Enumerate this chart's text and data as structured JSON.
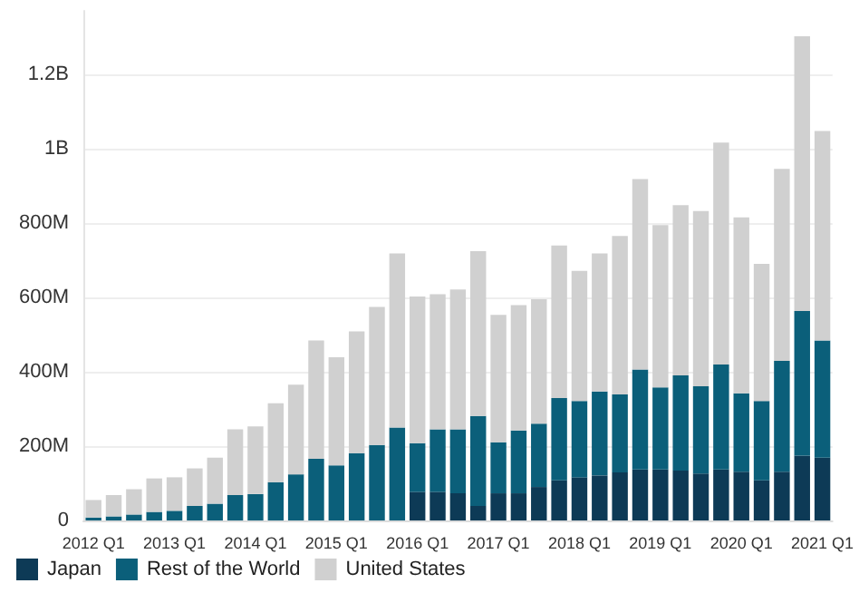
{
  "chart_data": {
    "type": "bar",
    "stacked": true,
    "categories": [
      "2012 Q1",
      null,
      null,
      null,
      "2013 Q1",
      null,
      null,
      null,
      "2014 Q1",
      null,
      null,
      null,
      "2015 Q1",
      null,
      null,
      null,
      "2016 Q1",
      null,
      null,
      null,
      "2017 Q1",
      null,
      null,
      null,
      "2018 Q1",
      null,
      null,
      null,
      "2019 Q1",
      null,
      null,
      null,
      "2020 Q1",
      null,
      null,
      null,
      "2021 Q1"
    ],
    "series": [
      {
        "name": "Japan",
        "color": "#0d3a56",
        "values": [
          0,
          0,
          0,
          0,
          0,
          0,
          0,
          0,
          0,
          0,
          0,
          0,
          0,
          0,
          0,
          0,
          77000000,
          77000000,
          73000000,
          39000000,
          73000000,
          73000000,
          90000000,
          108000000,
          116000000,
          121000000,
          129000000,
          137000000,
          137000000,
          134000000,
          126000000,
          137000000,
          131000000,
          108000000,
          131000000,
          174000000,
          169000000
        ]
      },
      {
        "name": "Rest of the World",
        "color": "#0b5f7a",
        "values": [
          8000000,
          11000000,
          16000000,
          23000000,
          26000000,
          39000000,
          45000000,
          68000000,
          71000000,
          103000000,
          124000000,
          166000000,
          148000000,
          181000000,
          203000000,
          250000000,
          131000000,
          168000000,
          172000000,
          242000000,
          137000000,
          169000000,
          170000000,
          221000000,
          205000000,
          226000000,
          210000000,
          269000000,
          221000000,
          256000000,
          235000000,
          282000000,
          211000000,
          213000000,
          298000000,
          389000000,
          315000000
        ]
      },
      {
        "name": "United States",
        "color": "#d0d0d0",
        "values": [
          47000000,
          57000000,
          68000000,
          90000000,
          90000000,
          101000000,
          124000000,
          177000000,
          182000000,
          212000000,
          241000000,
          318000000,
          291000000,
          327000000,
          371000000,
          468000000,
          394000000,
          363000000,
          376000000,
          443000000,
          343000000,
          337000000,
          335000000,
          410000000,
          350000000,
          371000000,
          426000000,
          512000000,
          436000000,
          458000000,
          471000000,
          597000000,
          473000000,
          369000000,
          516000000,
          739000000,
          563000000
        ]
      }
    ],
    "ylim": [
      0,
      1370000000
    ],
    "yticks": [
      0,
      {
        "value": 200000000,
        "label": "200M"
      },
      {
        "value": 400000000,
        "label": "400M"
      },
      {
        "value": 600000000,
        "label": "600M"
      },
      {
        "value": 800000000,
        "label": "800M"
      },
      {
        "value": 1000000000,
        "label": "1B"
      },
      {
        "value": 1200000000,
        "label": "1.2B"
      }
    ],
    "grid": "y",
    "legend": "bottom left"
  }
}
